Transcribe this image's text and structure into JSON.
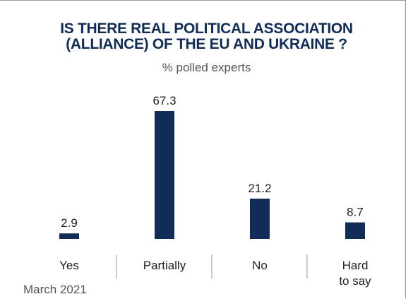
{
  "chart_data": {
    "type": "bar",
    "title_lines": [
      "IS THERE REAL POLITICAL ASSOCIATION",
      "(ALLIANCE) OF THE EU AND UKRAINE ?"
    ],
    "subtitle": "% polled experts",
    "categories": [
      [
        "Yes"
      ],
      [
        "Partially"
      ],
      [
        "No"
      ],
      [
        "Hard",
        "to say"
      ]
    ],
    "values": [
      2.9,
      67.3,
      21.2,
      8.7
    ],
    "value_labels": [
      "2.9",
      "67.3",
      "21.2",
      "8.7"
    ],
    "ylim": [
      0,
      67.3
    ],
    "bar_color": "#122c5a",
    "grid": false,
    "legend": "none"
  },
  "footnote": "March 2021"
}
